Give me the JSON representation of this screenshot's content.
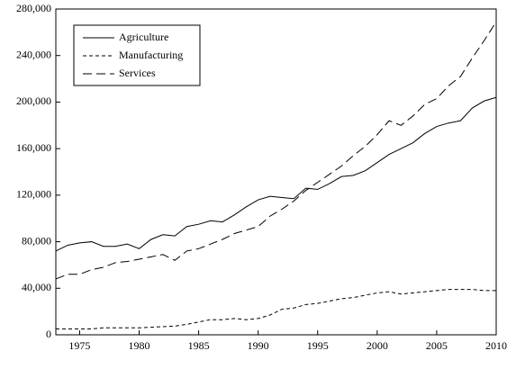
{
  "chart_data": {
    "type": "line",
    "x": [
      1973,
      1974,
      1975,
      1976,
      1977,
      1978,
      1979,
      1980,
      1981,
      1982,
      1983,
      1984,
      1985,
      1986,
      1987,
      1988,
      1989,
      1990,
      1991,
      1992,
      1993,
      1994,
      1995,
      1996,
      1997,
      1998,
      1999,
      2000,
      2001,
      2002,
      2003,
      2004,
      2005,
      2006,
      2007,
      2008,
      2009,
      2010
    ],
    "series": [
      {
        "name": "Agriculture",
        "color": "#000000",
        "dash": "none",
        "values": [
          72000,
          77000,
          79000,
          80000,
          76000,
          76000,
          78000,
          74000,
          82000,
          86000,
          85000,
          93000,
          95000,
          98000,
          97000,
          103000,
          110000,
          116000,
          119000,
          118000,
          117000,
          126000,
          125000,
          130000,
          136000,
          137000,
          141000,
          148000,
          155000,
          160000,
          165000,
          173000,
          179000,
          182000,
          184000,
          195000,
          201000,
          204000
        ]
      },
      {
        "name": "Manufacturing",
        "color": "#000000",
        "dash": "4,3",
        "values": [
          5000,
          5000,
          5000,
          5000,
          6000,
          6000,
          6000,
          6000,
          6500,
          7000,
          7500,
          9000,
          11000,
          13000,
          13000,
          14000,
          13000,
          14000,
          17000,
          22000,
          23000,
          26000,
          27000,
          29000,
          31000,
          32000,
          34000,
          36000,
          37000,
          35000,
          36000,
          37000,
          38000,
          39000,
          39000,
          39000,
          38000,
          38000
        ]
      },
      {
        "name": "Services",
        "color": "#000000",
        "dash": "10,5",
        "values": [
          48000,
          52000,
          52000,
          56000,
          58000,
          62000,
          63000,
          65000,
          67000,
          69000,
          64000,
          72000,
          74000,
          78000,
          82000,
          87000,
          90000,
          93000,
          102000,
          108000,
          115000,
          124000,
          131000,
          138000,
          145000,
          154000,
          162000,
          172000,
          184000,
          180000,
          188000,
          198000,
          203000,
          214000,
          222000,
          238000,
          253000,
          269000
        ]
      }
    ],
    "xlim": [
      1973,
      2010
    ],
    "xticks": [
      1975,
      1980,
      1985,
      1990,
      1995,
      2000,
      2005,
      2010
    ],
    "ylim": [
      0,
      280000
    ],
    "yticks": [
      0,
      {
        "value": 40000,
        "label": "40,000"
      },
      {
        "value": 80000,
        "label": "80,000"
      },
      {
        "value": 120000,
        "label": "120,000"
      },
      {
        "value": 160000,
        "label": "160,000"
      },
      {
        "value": 200000,
        "label": "200,000"
      },
      {
        "value": 240000,
        "label": "240,000"
      },
      {
        "value": 280000,
        "label": "280,000"
      }
    ],
    "legend": "upper-left"
  }
}
